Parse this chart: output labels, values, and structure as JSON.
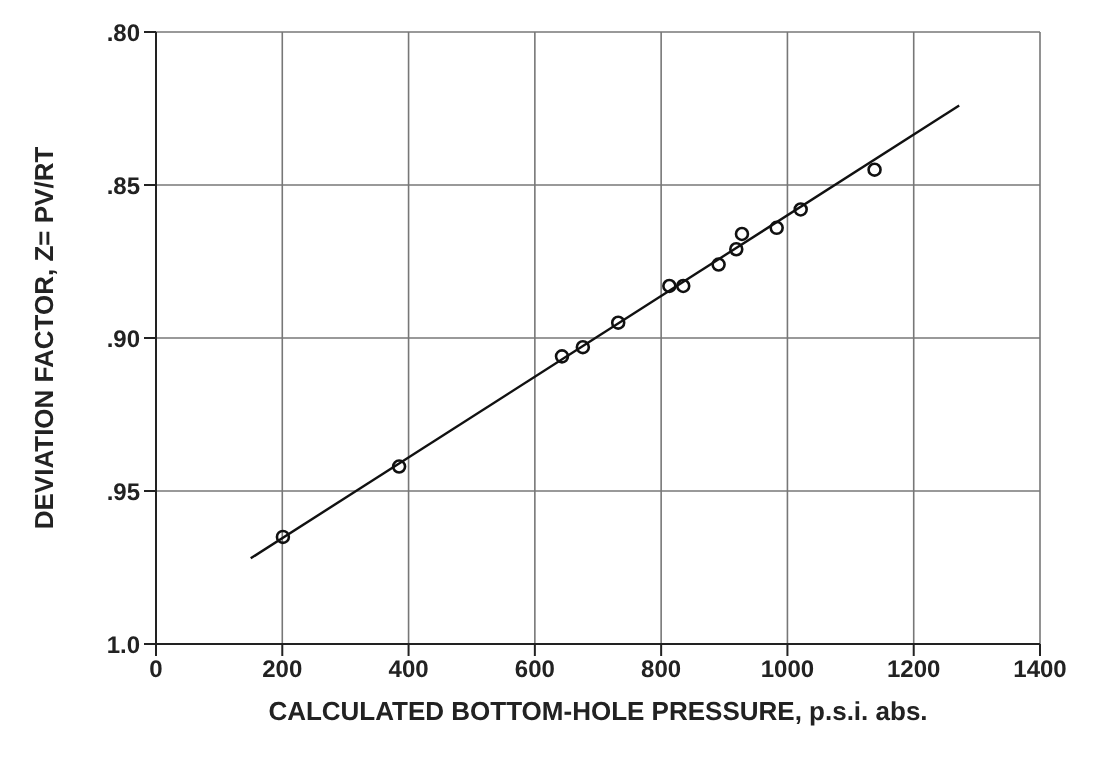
{
  "chart_data": {
    "type": "scatter",
    "xlabel": "CALCULATED BOTTOM-HOLE PRESSURE, p.s.i. abs.",
    "ylabel": "DEVIATION FACTOR,  Z= PV/RT",
    "xlim": [
      0,
      1400
    ],
    "xticks": [
      0,
      200,
      400,
      600,
      800,
      1000,
      1200,
      1400
    ],
    "ylim": [
      1.0,
      0.8
    ],
    "yticks": [
      {
        "value": 0.8,
        "label": ".80"
      },
      {
        "value": 0.85,
        "label": ".85"
      },
      {
        "value": 0.9,
        "label": ".90"
      },
      {
        "value": 0.95,
        "label": ".95"
      },
      {
        "value": 1.0,
        "label": "1.0"
      }
    ],
    "grid": true,
    "series": [
      {
        "marker": "circle",
        "color": "#111111",
        "x": [
          201,
          385,
          643,
          676,
          732,
          813,
          835,
          891,
          919,
          928,
          983,
          1021,
          1138
        ],
        "values": [
          0.965,
          0.942,
          0.906,
          0.903,
          0.895,
          0.883,
          0.883,
          0.876,
          0.871,
          0.866,
          0.864,
          0.858,
          0.845
        ]
      },
      {
        "type": "line",
        "color": "#111111",
        "x": [
          150,
          1272
        ],
        "values": [
          0.972,
          0.824
        ]
      }
    ]
  }
}
